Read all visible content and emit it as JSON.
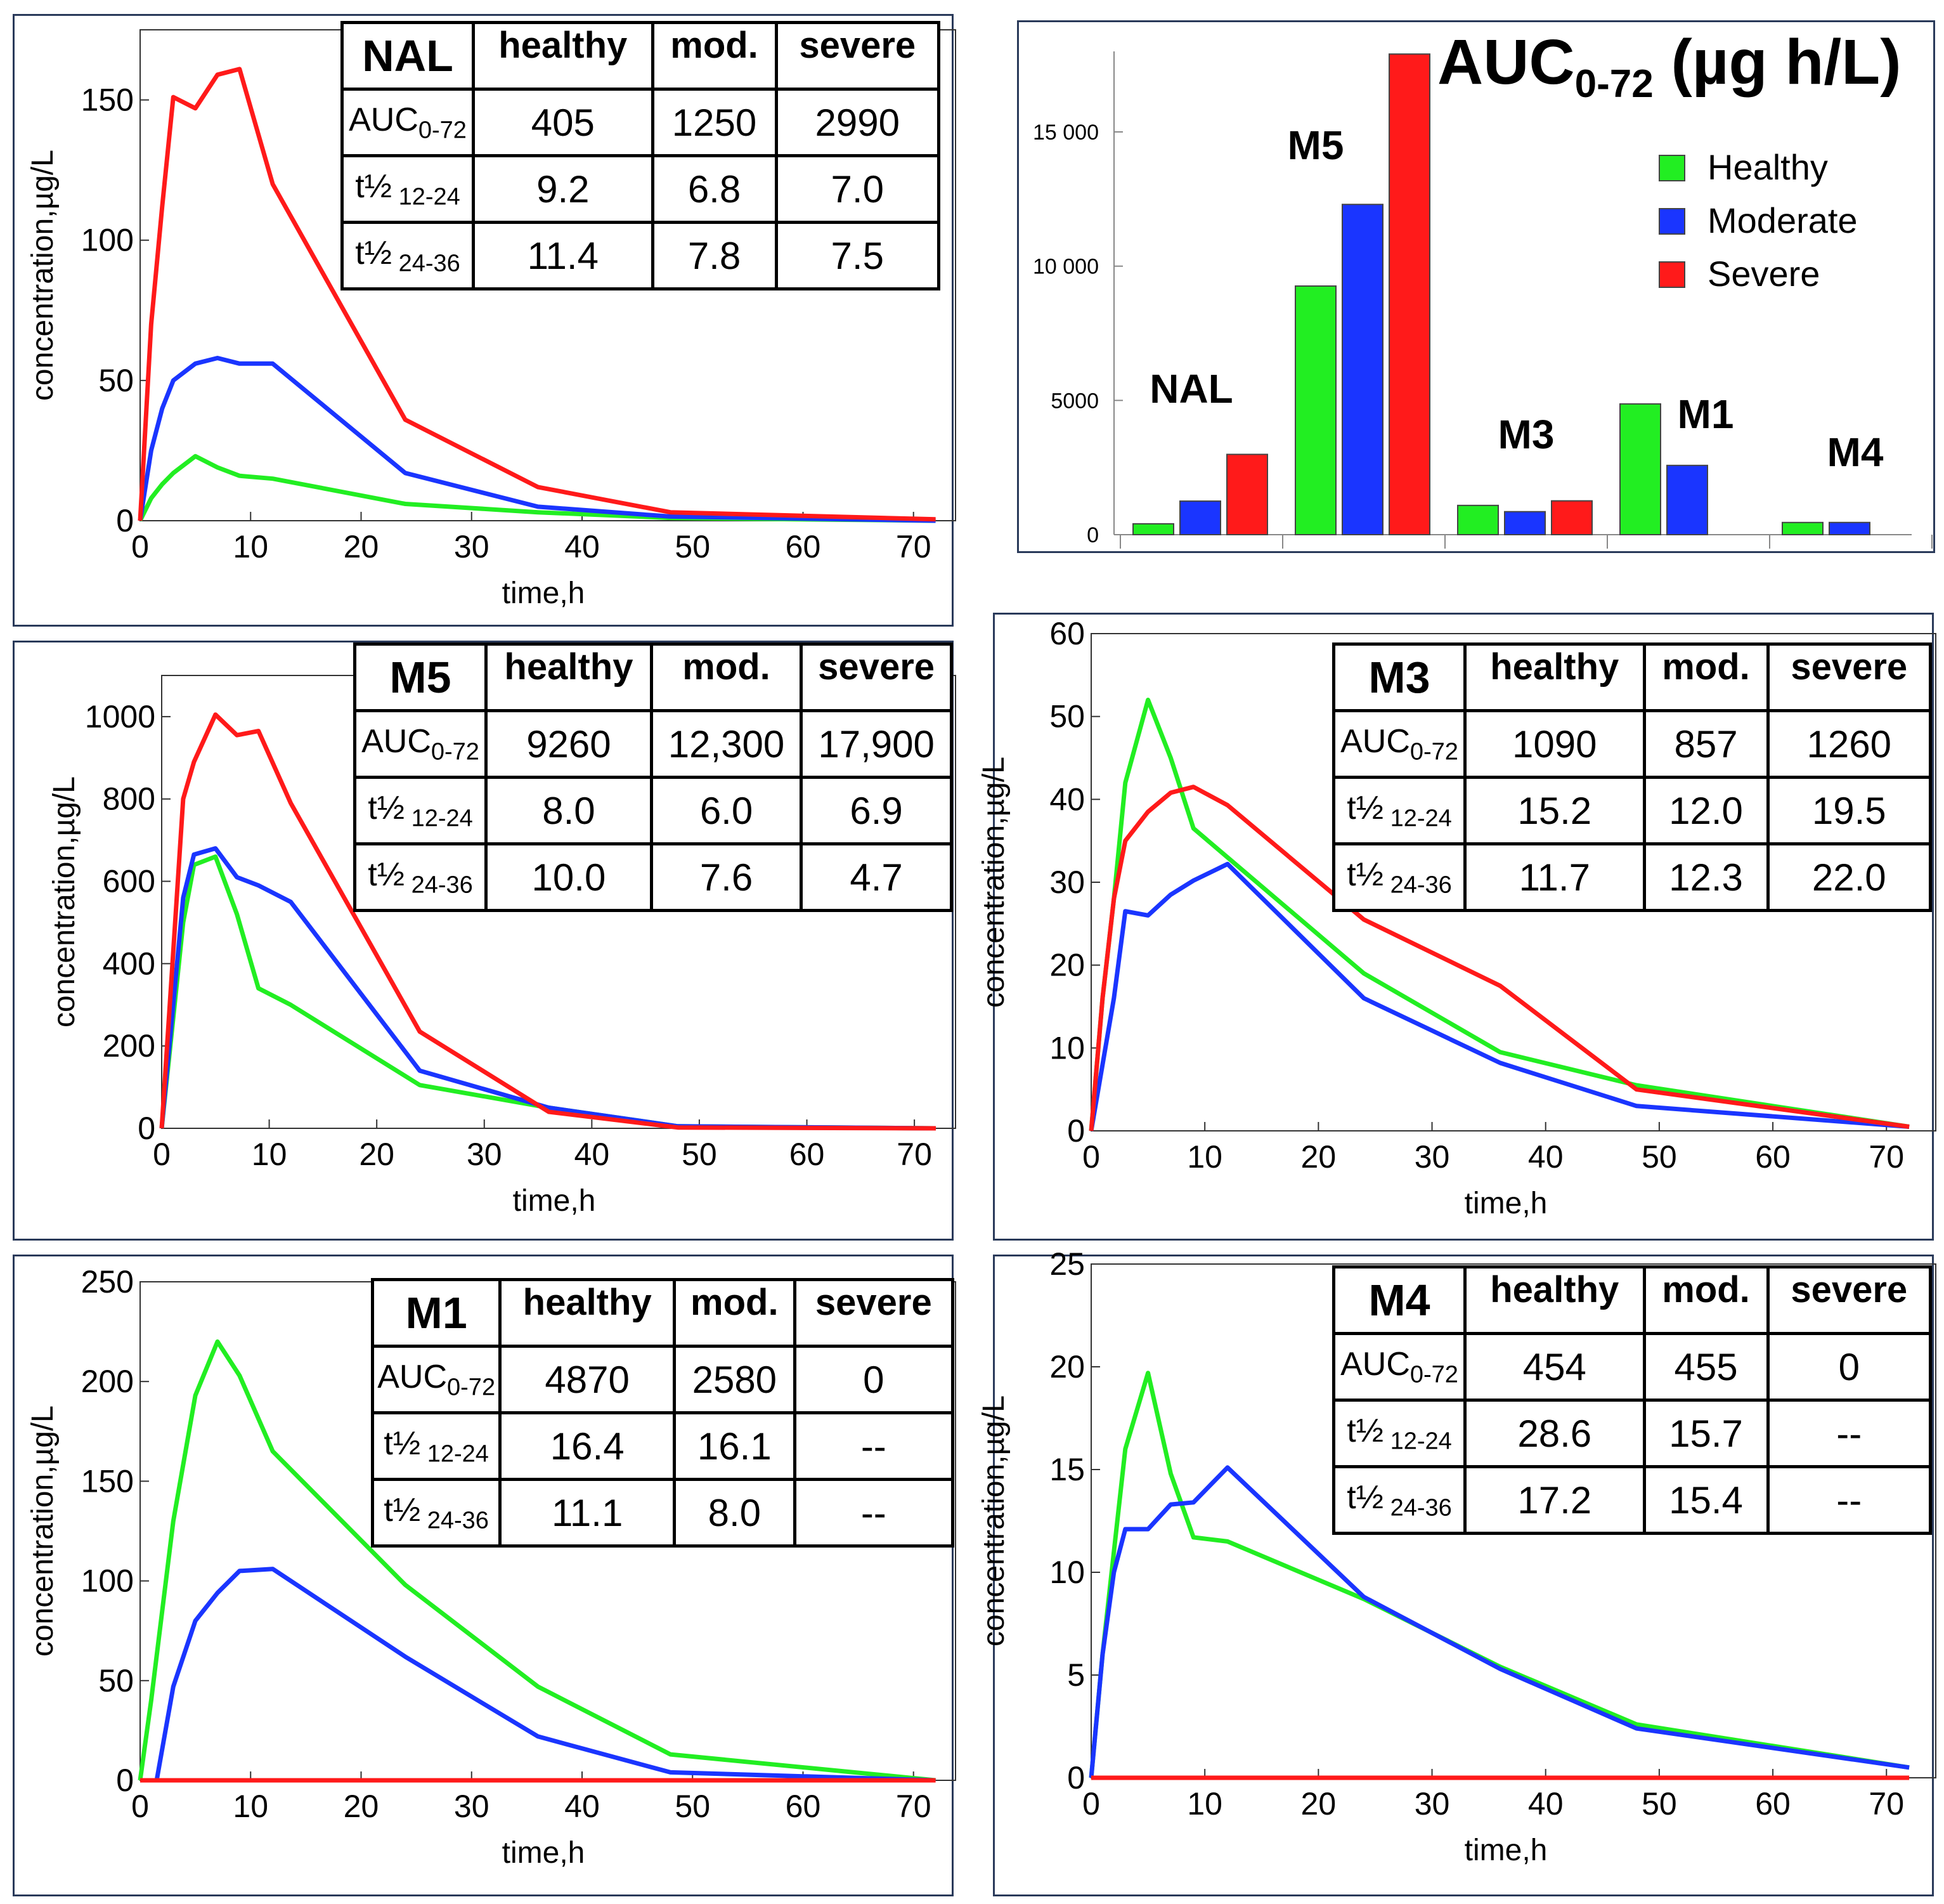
{
  "colors": {
    "healthy": "#22ee22",
    "moderate": "#1a35ff",
    "severe": "#ff1a1a"
  },
  "line_charts": [
    {
      "id": "nal",
      "name": "NAL",
      "type": "line",
      "xlabel": "time,h",
      "ylabel": "concentration,µg/L",
      "xlim": [
        0,
        73
      ],
      "ylim": [
        0,
        175
      ],
      "xticks": [
        0,
        10,
        20,
        30,
        40,
        50,
        60,
        70
      ],
      "yticks": [
        0,
        50,
        100,
        150
      ],
      "series": [
        {
          "name": "healthy",
          "x": [
            0,
            1,
            2,
            3,
            5,
            7,
            9,
            12,
            24,
            36,
            48,
            72
          ],
          "y": [
            0,
            8,
            13,
            17,
            23,
            19,
            16,
            15,
            6,
            3,
            1,
            0
          ]
        },
        {
          "name": "moderate",
          "x": [
            0,
            1,
            2,
            3,
            5,
            7,
            9,
            12,
            24,
            36,
            48,
            72
          ],
          "y": [
            0,
            25,
            40,
            50,
            56,
            58,
            56,
            56,
            17,
            5,
            1.5,
            0
          ]
        },
        {
          "name": "severe",
          "x": [
            0,
            1,
            2,
            3,
            5,
            7,
            9,
            12,
            24,
            36,
            48,
            72
          ],
          "y": [
            0,
            70,
            112,
            151,
            147,
            159,
            161,
            120,
            36,
            12,
            3,
            0.5
          ]
        }
      ],
      "table": {
        "headers": [
          "healthy",
          "mod.",
          "severe"
        ],
        "rows": [
          {
            "label_main": "AUC",
            "label_sub": "0-72",
            "values": [
              "405",
              "1250",
              "2990"
            ]
          },
          {
            "label_main": "t½",
            "label_sub": " 12-24",
            "values": [
              "9.2",
              "6.8",
              "7.0"
            ]
          },
          {
            "label_main": "t½",
            "label_sub": " 24-36",
            "values": [
              "11.4",
              "7.8",
              "7.5"
            ]
          }
        ]
      }
    },
    {
      "id": "m5",
      "name": "M5",
      "type": "line",
      "xlabel": "time,h",
      "ylabel": "concentration,µg/L",
      "xlim": [
        0,
        73
      ],
      "ylim": [
        0,
        1100
      ],
      "xticks": [
        0,
        10,
        20,
        30,
        40,
        50,
        60,
        70
      ],
      "yticks": [
        0,
        200,
        400,
        600,
        800,
        1000
      ],
      "series": [
        {
          "name": "healthy",
          "x": [
            0,
            1,
            2,
            3,
            5,
            7,
            9,
            12,
            24,
            36,
            48,
            72
          ],
          "y": [
            0,
            250,
            500,
            640,
            660,
            520,
            340,
            300,
            105,
            50,
            5,
            0
          ]
        },
        {
          "name": "moderate",
          "x": [
            0,
            1,
            2,
            3,
            5,
            7,
            9,
            12,
            24,
            36,
            48,
            72
          ],
          "y": [
            0,
            280,
            560,
            665,
            680,
            610,
            590,
            550,
            140,
            50,
            5,
            0
          ]
        },
        {
          "name": "severe",
          "x": [
            0,
            1,
            2,
            3,
            5,
            7,
            9,
            12,
            24,
            36,
            48,
            72
          ],
          "y": [
            0,
            400,
            800,
            890,
            1005,
            955,
            965,
            790,
            235,
            40,
            2,
            0
          ]
        }
      ],
      "table": {
        "headers": [
          "healthy",
          "mod.",
          "severe"
        ],
        "rows": [
          {
            "label_main": "AUC",
            "label_sub": "0-72",
            "values": [
              "9260",
              "12,300",
              "17,900"
            ]
          },
          {
            "label_main": "t½",
            "label_sub": " 12-24",
            "values": [
              "8.0",
              "6.0",
              "6.9"
            ]
          },
          {
            "label_main": "t½",
            "label_sub": " 24-36",
            "values": [
              "10.0",
              "7.6",
              "4.7"
            ]
          }
        ]
      }
    },
    {
      "id": "m3",
      "name": "M3",
      "type": "line",
      "xlabel": "time,h",
      "ylabel": "concentration,µg/L",
      "xlim": [
        0,
        73
      ],
      "ylim": [
        0,
        60
      ],
      "xticks": [
        0,
        10,
        20,
        30,
        40,
        50,
        60,
        70
      ],
      "yticks": [
        0,
        10,
        20,
        30,
        40,
        50,
        60
      ],
      "series": [
        {
          "name": "healthy",
          "x": [
            0,
            1,
            2,
            3,
            5,
            7,
            9,
            12,
            24,
            36,
            48,
            72
          ],
          "y": [
            0,
            16,
            28,
            42,
            52,
            45,
            36.5,
            33,
            19,
            9.5,
            5.5,
            0.5
          ]
        },
        {
          "name": "moderate",
          "x": [
            0,
            1,
            2,
            3,
            5,
            7,
            9,
            12,
            24,
            36,
            48,
            72
          ],
          "y": [
            0,
            8,
            16,
            26.5,
            26,
            28.5,
            30.2,
            32.2,
            16,
            8.2,
            3,
            0.5
          ]
        },
        {
          "name": "severe",
          "x": [
            0,
            1,
            2,
            3,
            5,
            7,
            9,
            12,
            24,
            36,
            48,
            72
          ],
          "y": [
            0,
            16,
            28,
            35,
            38.5,
            40.8,
            41.5,
            39.3,
            25.5,
            17.5,
            5,
            0.5
          ]
        }
      ],
      "table": {
        "headers": [
          "healthy",
          "mod.",
          "severe"
        ],
        "rows": [
          {
            "label_main": "AUC",
            "label_sub": "0-72",
            "values": [
              "1090",
              "857",
              "1260"
            ]
          },
          {
            "label_main": "t½",
            "label_sub": " 12-24",
            "values": [
              "15.2",
              "12.0",
              "19.5"
            ]
          },
          {
            "label_main": "t½",
            "label_sub": " 24-36",
            "values": [
              "11.7",
              "12.3",
              "22.0"
            ]
          }
        ]
      }
    },
    {
      "id": "m1",
      "name": "M1",
      "type": "line",
      "xlabel": "time,h",
      "ylabel": "concentration,µg/L",
      "xlim": [
        0,
        73
      ],
      "ylim": [
        0,
        250
      ],
      "xticks": [
        0,
        10,
        20,
        30,
        40,
        50,
        60,
        70
      ],
      "yticks": [
        0,
        50,
        100,
        150,
        200,
        250
      ],
      "series": [
        {
          "name": "healthy",
          "x": [
            0,
            1,
            3,
            5,
            7,
            9,
            12,
            24,
            36,
            48,
            72
          ],
          "y": [
            0,
            40,
            130,
            193,
            220,
            203,
            165,
            98,
            47,
            13,
            0
          ]
        },
        {
          "name": "moderate",
          "x": [
            0,
            1.5,
            3,
            5,
            7,
            9,
            12,
            24,
            36,
            48,
            72
          ],
          "y": [
            0,
            0,
            47,
            80,
            94,
            105,
            106,
            62,
            22,
            4,
            0
          ]
        },
        {
          "name": "severe",
          "x": [
            0,
            72
          ],
          "y": [
            0,
            0
          ]
        }
      ],
      "table": {
        "headers": [
          "healthy",
          "mod.",
          "severe"
        ],
        "rows": [
          {
            "label_main": "AUC",
            "label_sub": "0-72",
            "values": [
              "4870",
              "2580",
              "0"
            ]
          },
          {
            "label_main": "t½",
            "label_sub": " 12-24",
            "values": [
              "16.4",
              "16.1",
              "--"
            ]
          },
          {
            "label_main": "t½",
            "label_sub": " 24-36",
            "values": [
              "11.1",
              "8.0",
              "--"
            ]
          }
        ]
      }
    },
    {
      "id": "m4",
      "name": "M4",
      "type": "line",
      "xlabel": "time,h",
      "ylabel": "concentration,µg/L",
      "xlim": [
        0,
        73
      ],
      "ylim": [
        0,
        25
      ],
      "xticks": [
        0,
        10,
        20,
        30,
        40,
        50,
        60,
        70
      ],
      "yticks": [
        0,
        5,
        10,
        15,
        20,
        25
      ],
      "series": [
        {
          "name": "healthy",
          "x": [
            0,
            1,
            2,
            3,
            5,
            7,
            9,
            12,
            24,
            36,
            48,
            72
          ],
          "y": [
            0,
            6,
            11,
            16,
            19.7,
            14.8,
            11.7,
            11.5,
            8.7,
            5.4,
            2.6,
            0.5
          ]
        },
        {
          "name": "moderate",
          "x": [
            0,
            1,
            2,
            3,
            5,
            7,
            9,
            12,
            24,
            36,
            48,
            72
          ],
          "y": [
            0,
            6,
            10,
            12.1,
            12.1,
            13.3,
            13.4,
            15.1,
            8.8,
            5.3,
            2.4,
            0.5
          ]
        },
        {
          "name": "severe",
          "x": [
            0,
            72
          ],
          "y": [
            0,
            0
          ]
        }
      ],
      "table": {
        "headers": [
          "healthy",
          "mod.",
          "severe"
        ],
        "rows": [
          {
            "label_main": "AUC",
            "label_sub": "0-72",
            "values": [
              "454",
              "455",
              "0"
            ]
          },
          {
            "label_main": "t½",
            "label_sub": " 12-24",
            "values": [
              "28.6",
              "15.7",
              "--"
            ]
          },
          {
            "label_main": "t½",
            "label_sub": " 24-36",
            "values": [
              "17.2",
              "15.4",
              "--"
            ]
          }
        ]
      }
    }
  ],
  "bar_chart": {
    "type": "bar",
    "title_main": "AUC",
    "title_sub": "0-72",
    "title_rest": " (µg h/L)",
    "categories": [
      "NAL",
      "M5",
      "M3",
      "M1",
      "M4"
    ],
    "ylim": [
      0,
      18000
    ],
    "yticks": [
      0,
      5000,
      10000,
      15000
    ],
    "ytick_labels": [
      "0",
      "5000",
      "10 000",
      "15 000"
    ],
    "legend": [
      "Healthy",
      "Moderate",
      "Severe"
    ],
    "series": [
      {
        "name": "Healthy",
        "values": [
          405,
          9260,
          1090,
          4870,
          454
        ]
      },
      {
        "name": "Moderate",
        "values": [
          1250,
          12300,
          857,
          2580,
          455
        ]
      },
      {
        "name": "Severe",
        "values": [
          2990,
          17900,
          1260,
          0,
          0
        ]
      }
    ]
  }
}
